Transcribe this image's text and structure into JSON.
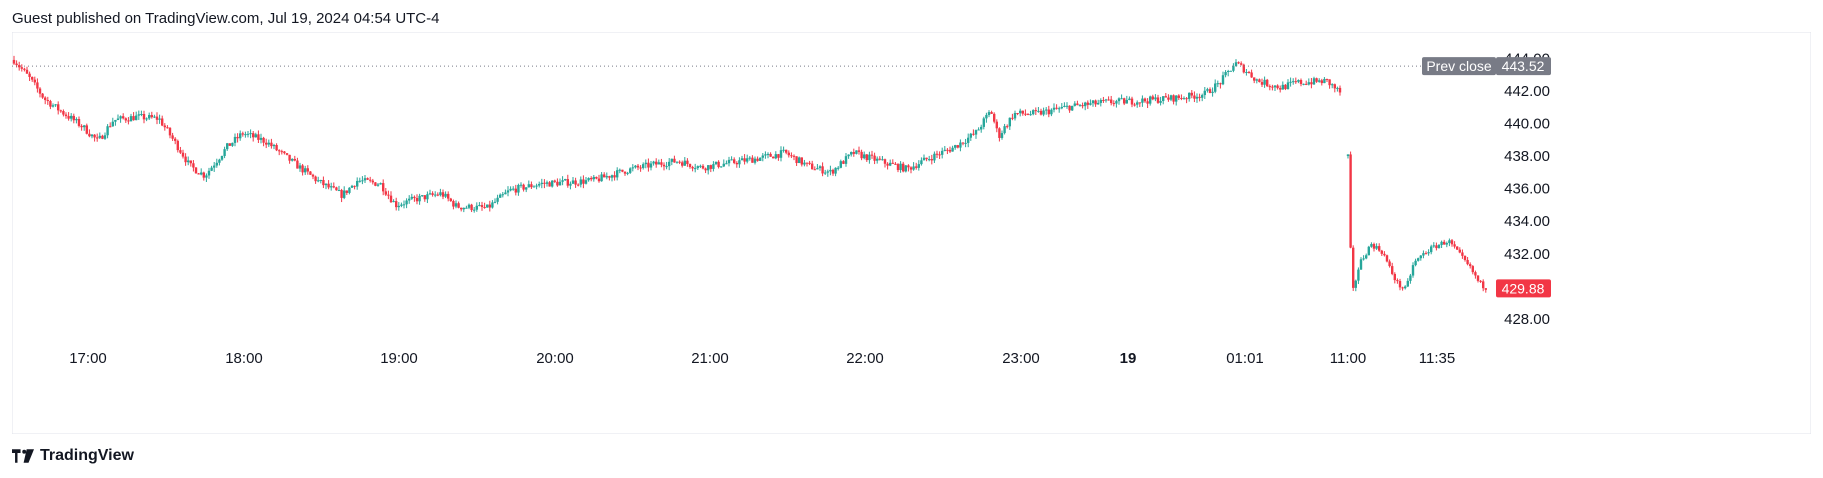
{
  "header": {
    "published": "Guest published on TradingView.com, Jul 19, 2024 04:54 UTC-4"
  },
  "footer": {
    "brand": "TradingView",
    "logo_icon": "tradingview-logo-icon"
  },
  "colors": {
    "up": "#26a69a",
    "down": "#f23645",
    "grid": "#ffffff",
    "axis_text": "#131722",
    "prev_close_bg": "#787b86"
  },
  "chart_data": {
    "type": "candlestick",
    "title": "",
    "x_ticks": [
      {
        "label": "17:00",
        "bold": false
      },
      {
        "label": "18:00",
        "bold": false
      },
      {
        "label": "19:00",
        "bold": false
      },
      {
        "label": "20:00",
        "bold": false
      },
      {
        "label": "21:00",
        "bold": false
      },
      {
        "label": "22:00",
        "bold": false
      },
      {
        "label": "23:00",
        "bold": false
      },
      {
        "label": "19",
        "bold": true
      },
      {
        "label": "01:01",
        "bold": false
      },
      {
        "label": "11:00",
        "bold": false
      },
      {
        "label": "11:35",
        "bold": false
      }
    ],
    "y_ticks": [
      "444.00",
      "442.00",
      "440.00",
      "438.00",
      "436.00",
      "434.00",
      "432.00",
      "430.00",
      "428.00"
    ],
    "y_tick_values": [
      444,
      442,
      440,
      438,
      436,
      434,
      432,
      430,
      428
    ],
    "ylim": [
      427.2,
      445.0
    ],
    "prev_close": {
      "label": "Prev close",
      "value": "443.52",
      "price": 443.52
    },
    "last_price": {
      "value": "429.88",
      "price": 429.88
    },
    "price_path": [
      {
        "t": 0,
        "p": 443.9
      },
      {
        "t": 0.01,
        "p": 442.8
      },
      {
        "t": 0.02,
        "p": 441.5
      },
      {
        "t": 0.03,
        "p": 440.8
      },
      {
        "t": 0.045,
        "p": 439.8
      },
      {
        "t": 0.055,
        "p": 438.9
      },
      {
        "t": 0.065,
        "p": 440.2
      },
      {
        "t": 0.08,
        "p": 440.4
      },
      {
        "t": 0.095,
        "p": 440.3
      },
      {
        "t": 0.11,
        "p": 438.2
      },
      {
        "t": 0.115,
        "p": 437.4
      },
      {
        "t": 0.125,
        "p": 436.8
      },
      {
        "t": 0.14,
        "p": 438.6
      },
      {
        "t": 0.15,
        "p": 439.4
      },
      {
        "t": 0.165,
        "p": 438.9
      },
      {
        "t": 0.18,
        "p": 437.8
      },
      {
        "t": 0.2,
        "p": 436.4
      },
      {
        "t": 0.215,
        "p": 435.6
      },
      {
        "t": 0.225,
        "p": 436.5
      },
      {
        "t": 0.24,
        "p": 436.3
      },
      {
        "t": 0.25,
        "p": 435.0
      },
      {
        "t": 0.265,
        "p": 435.4
      },
      {
        "t": 0.28,
        "p": 435.7
      },
      {
        "t": 0.29,
        "p": 434.9
      },
      {
        "t": 0.31,
        "p": 434.8
      },
      {
        "t": 0.325,
        "p": 435.9
      },
      {
        "t": 0.345,
        "p": 436.3
      },
      {
        "t": 0.365,
        "p": 436.4
      },
      {
        "t": 0.38,
        "p": 436.5
      },
      {
        "t": 0.4,
        "p": 437.1
      },
      {
        "t": 0.42,
        "p": 437.5
      },
      {
        "t": 0.435,
        "p": 437.7
      },
      {
        "t": 0.45,
        "p": 437.3
      },
      {
        "t": 0.47,
        "p": 437.6
      },
      {
        "t": 0.49,
        "p": 437.9
      },
      {
        "t": 0.505,
        "p": 438.2
      },
      {
        "t": 0.52,
        "p": 437.4
      },
      {
        "t": 0.535,
        "p": 437.0
      },
      {
        "t": 0.55,
        "p": 438.2
      },
      {
        "t": 0.57,
        "p": 437.6
      },
      {
        "t": 0.585,
        "p": 437.2
      },
      {
        "t": 0.6,
        "p": 437.9
      },
      {
        "t": 0.615,
        "p": 438.5
      },
      {
        "t": 0.63,
        "p": 439.4
      },
      {
        "t": 0.64,
        "p": 440.8
      },
      {
        "t": 0.645,
        "p": 439.2
      },
      {
        "t": 0.655,
        "p": 440.6
      },
      {
        "t": 0.67,
        "p": 440.6
      },
      {
        "t": 0.69,
        "p": 441.0
      },
      {
        "t": 0.715,
        "p": 441.3
      },
      {
        "t": 0.74,
        "p": 441.4
      },
      {
        "t": 0.765,
        "p": 441.6
      },
      {
        "t": 0.78,
        "p": 441.8
      },
      {
        "t": 0.79,
        "p": 442.5
      },
      {
        "t": 0.8,
        "p": 443.7
      },
      {
        "t": 0.805,
        "p": 443.4
      },
      {
        "t": 0.815,
        "p": 442.6
      },
      {
        "t": 0.83,
        "p": 442.2
      },
      {
        "t": 0.84,
        "p": 442.5
      },
      {
        "t": 0.86,
        "p": 442.6
      },
      {
        "t": 0.87,
        "p": 441.8
      }
    ],
    "price_path_b": [
      {
        "t": 0,
        "p": 438.0
      },
      {
        "t": 0.005,
        "p": 429.4
      },
      {
        "t": 0.015,
        "p": 431.4
      },
      {
        "t": 0.03,
        "p": 432.6
      },
      {
        "t": 0.045,
        "p": 432.1
      },
      {
        "t": 0.055,
        "p": 431.0
      },
      {
        "t": 0.065,
        "p": 430.1
      },
      {
        "t": 0.075,
        "p": 429.8
      },
      {
        "t": 0.085,
        "p": 431.4
      },
      {
        "t": 0.1,
        "p": 432.1
      },
      {
        "t": 0.115,
        "p": 432.5
      },
      {
        "t": 0.13,
        "p": 432.8
      },
      {
        "t": 0.145,
        "p": 431.9
      },
      {
        "t": 0.16,
        "p": 431.0
      },
      {
        "t": 0.17,
        "p": 430.2
      },
      {
        "t": 0.18,
        "p": 429.88
      }
    ]
  }
}
